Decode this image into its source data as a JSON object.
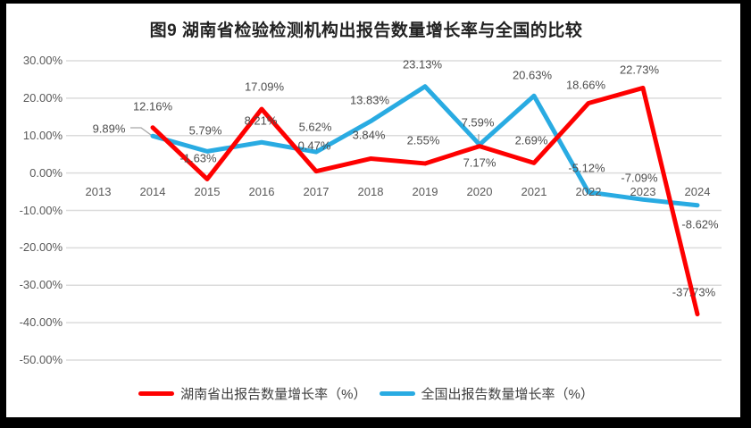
{
  "title": "图9 湖南省检验检测机构出报告数量增长率与全国的比较",
  "chart_data": {
    "type": "line",
    "categories": [
      "2013",
      "2014",
      "2015",
      "2016",
      "2017",
      "2018",
      "2019",
      "2020",
      "2021",
      "2022",
      "2023",
      "2024"
    ],
    "series": [
      {
        "name": "湖南省出报告数量增长率（%）",
        "color": "#FE0000",
        "values": [
          null,
          12.16,
          -1.63,
          17.09,
          0.47,
          3.84,
          2.55,
          7.17,
          2.69,
          18.66,
          22.73,
          -37.73
        ]
      },
      {
        "name": "全国出报告数量增长率（%）",
        "color": "#29ABE2",
        "values": [
          null,
          9.89,
          5.79,
          8.21,
          5.62,
          13.83,
          23.13,
          7.59,
          20.63,
          -5.12,
          -7.09,
          -8.62
        ]
      }
    ],
    "ylim": [
      -50,
      30
    ],
    "ytick_step": 10,
    "ytick_labels": [
      "30.00%",
      "20.00%",
      "10.00%",
      "0.00%",
      "-10.00%",
      "-20.00%",
      "-30.00%",
      "-40.00%",
      "-50.00%"
    ],
    "grid": true,
    "legend_position": "bottom",
    "data_labels": true
  },
  "style": {
    "grid_color": "#DBDBDB",
    "leader_color": "#A6A6A6",
    "axis_text_color": "#595959"
  }
}
